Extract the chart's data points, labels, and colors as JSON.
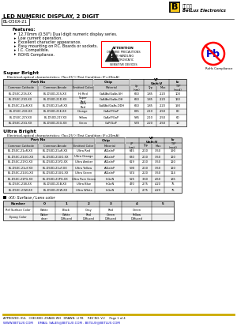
{
  "title": "LED NUMERIC DISPLAY, 2 DIGIT",
  "part_number": "BL-D50X-21",
  "features": [
    "12.70mm (0.50\") Dual digit numeric display series.",
    "Low current operation.",
    "Excellent character appearance.",
    "Easy mounting on P.C. Boards or sockets.",
    "I.C. Compatible.",
    "ROHS Compliance."
  ],
  "super_bright_title": "Super Bright",
  "super_bright_subtitle": "    Electrical-optical characteristics: (Ta=25°) (Test Condition: IF=20mA)",
  "super_bright_col_headers": [
    "Common Cathode",
    "Common Anode",
    "Emitted Color",
    "Material",
    "λp\n(nm)",
    "Typ",
    "Max",
    "TYP\n(mcd)"
  ],
  "super_bright_rows": [
    [
      "BL-D50C-21S-XX",
      "BL-D50D-21S-XX",
      "Hi Red",
      "GaAlAs/GaAs.SH",
      "660",
      "1.85",
      "2.20",
      "100"
    ],
    [
      "BL-D50C-21D-XX",
      "BL-D50D-21D-XX",
      "Super\nRed",
      "GaAlAs/GaAs.DH",
      "660",
      "1.85",
      "2.20",
      "160"
    ],
    [
      "BL-D50C-21uR-XX",
      "BL-D50D-21uR-XX",
      "Ultra\nRed",
      "GaAlAs/GaAs.DDH",
      "660",
      "1.85",
      "2.20",
      "190"
    ],
    [
      "BL-D50C-21E-XX",
      "BL-D50D-21E-XX",
      "Orange",
      "GaAsP/GaP",
      "635",
      "2.10",
      "2.50",
      "60"
    ],
    [
      "BL-D50C-21Y-XX",
      "BL-D50D-21Y-XX",
      "Yellow",
      "GaAsP/GaP",
      "585",
      "2.10",
      "2.50",
      "60"
    ],
    [
      "BL-D50C-21G-XX",
      "BL-D50D-21G-XX",
      "Green",
      "GaP/GaP",
      "570",
      "2.20",
      "2.50",
      "10"
    ]
  ],
  "ultra_bright_title": "Ultra Bright",
  "ultra_bright_subtitle": "    Electrical-optical characteristics: (Ta=25°) (Test Condition: IF=20mA)",
  "ultra_bright_col_headers": [
    "Common Cathode",
    "Common Anode",
    "Emitted Color",
    "Material",
    "λP\n(nm)",
    "Typ",
    "Max",
    "TYP\n(mcd)"
  ],
  "ultra_bright_rows": [
    [
      "BL-D50C-21uR-XX",
      "BL-D50D-21uR-XX",
      "Ultra Red",
      "AlGaInP",
      "645",
      "2.10",
      "3.50",
      "190"
    ],
    [
      "BL-D50C-21UO-XX",
      "BL-D50D-21UO-XX",
      "Ultra Orange",
      "AlGaInP",
      "630",
      "2.10",
      "3.50",
      "120"
    ],
    [
      "BL-D50C-21YO-XX",
      "BL-D50D-21YO-XX",
      "Ultra Amber",
      "AlGaInP",
      "619",
      "2.10",
      "3.50",
      "120"
    ],
    [
      "BL-D50C-21uY-XX",
      "BL-D50D-21uY-XX",
      "Ultra Yellow",
      "AlGaInP",
      "590",
      "2.10",
      "3.50",
      "120"
    ],
    [
      "BL-D50C-21UG-XX",
      "BL-D50D-21UG-XX",
      "Ultra Green",
      "AlGaInP",
      "574",
      "2.20",
      "3.50",
      "114"
    ],
    [
      "BL-D50C-21PG-XX",
      "BL-D50D-21PG-XX",
      "Ultra Pure Green",
      "InGaN",
      "525",
      "3.60",
      "4.50",
      "185"
    ],
    [
      "BL-D50C-21B-XX",
      "BL-D50D-21B-XX",
      "Ultra Blue",
      "InGaN",
      "470",
      "2.75",
      "4.20",
      "75"
    ],
    [
      "BL-D50C-21W-XX",
      "BL-D50D-21W-XX",
      "Ultra White",
      "InGaN",
      "/",
      "2.75",
      "4.20",
      "75"
    ]
  ],
  "surface_note": "-XX: Surface / Lens color",
  "surface_table_headers": [
    "Number",
    "0",
    "1",
    "2",
    "3",
    "4",
    "5"
  ],
  "surface_row1_label": "Ref Surface Color",
  "surface_row1": [
    "White",
    "Black",
    "Gray",
    "Red",
    "Green",
    ""
  ],
  "surface_row2_label": "Epoxy Color",
  "surface_row2": [
    "Water\nclear",
    "White\nDiffused",
    "Red\nDiffused",
    "Green\nDiffused",
    "Yellow\nDiffused",
    ""
  ],
  "footer_line": "APPROVED: XUL   CHECKED: ZHANG WH   DRAWN: LI FB     REV NO: V.2     Page 1 of 4",
  "footer_email": "WWW.BETLUX.COM     EMAIL: SALES@BETLUX.COM . BETLUX@BETLUX.COM",
  "bg_color": "#ffffff",
  "header_bg": "#d0d0d0",
  "row_bg_odd": "#f0f0f0",
  "row_bg_even": "#ffffff",
  "logo_bg": "#1a1a1a",
  "logo_yellow": "#f5c518",
  "chinese_text": "百流光电",
  "company_name": "BetLux Electronics"
}
